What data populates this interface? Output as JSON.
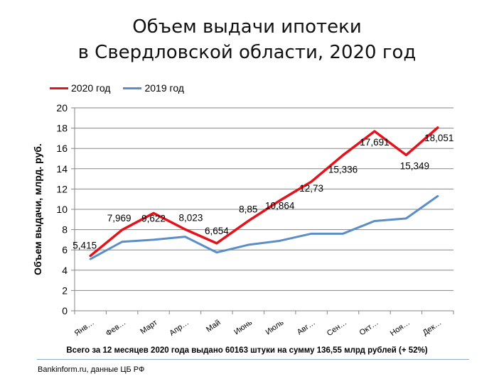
{
  "title_line1": "Объем выдачи ипотеки",
  "title_line2": "в Свердловской области, 2020 год",
  "summary": "Всего за 12 месяцев 2020 года  выдано 60163 штуки на сумму 136,55 млрд  рублей  (+ 52%)",
  "source": "Bankinform.ru,  данные ЦБ РФ",
  "chart_data": {
    "type": "line",
    "ylabel": "Объем выдачи, млрд. руб.",
    "xlabel": "",
    "ylim": [
      0,
      20
    ],
    "yticks": [
      "0",
      "2",
      "4",
      "6",
      "8",
      "10",
      "12",
      "14",
      "16",
      "18",
      "20"
    ],
    "grid": true,
    "legend_position": "top-left",
    "categories": [
      "Янв…",
      "Фев…",
      "Март",
      "Апр…",
      "Май",
      "Июнь",
      "Июль",
      "Авг…",
      "Сен…",
      "Окт…",
      "Ноя…",
      "Дек…"
    ],
    "series": [
      {
        "name": "2020 год",
        "color": "#e3121b",
        "values": [
          5.415,
          7.969,
          9.622,
          8.023,
          6.654,
          8.85,
          10.864,
          12.73,
          15.336,
          17.691,
          15.349,
          18.051
        ],
        "data_labels": [
          "5,415",
          "7,969",
          "9,622",
          "8,023",
          "6,654",
          "8,85",
          "10,864",
          "12,73",
          "15,336",
          "17,691",
          "15,349",
          "18,051"
        ]
      },
      {
        "name": "2019 год",
        "color": "#5b8ec9",
        "values": [
          5.1,
          6.8,
          7.0,
          7.3,
          5.75,
          6.5,
          6.9,
          7.6,
          7.6,
          8.85,
          9.1,
          11.3
        ]
      }
    ]
  }
}
